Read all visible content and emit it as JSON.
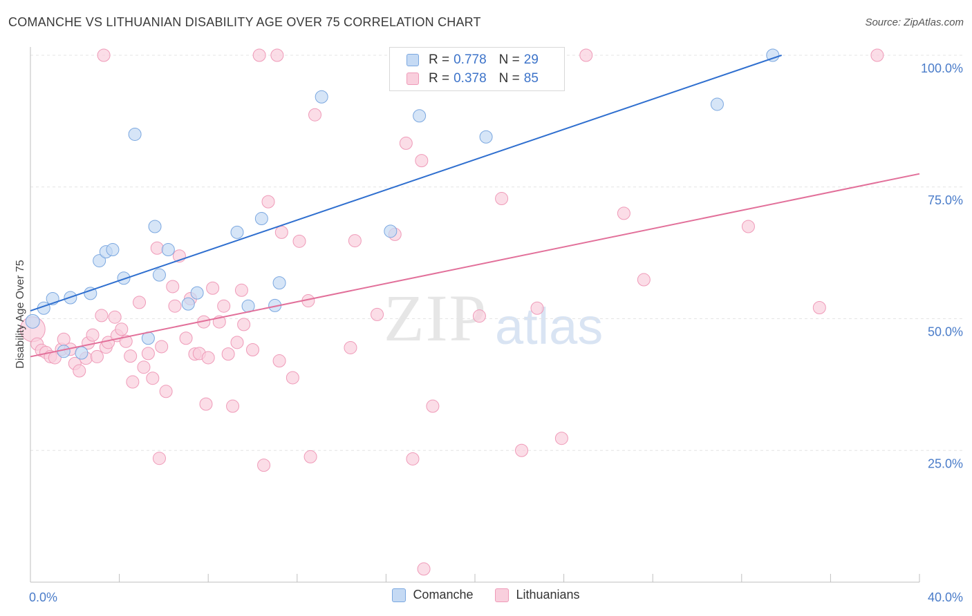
{
  "title": "COMANCHE VS LITHUANIAN DISABILITY AGE OVER 75 CORRELATION CHART",
  "source": "Source: ZipAtlas.com",
  "watermark": {
    "zip": "ZIP",
    "atlas": "atlas"
  },
  "legend": {
    "rows": [
      {
        "r_label": "R = ",
        "r_value": "0.778",
        "n_label": "N = ",
        "n_value": "29"
      },
      {
        "r_label": "R = ",
        "r_value": "0.378",
        "n_label": "N = ",
        "n_value": "85"
      }
    ]
  },
  "chart_data": {
    "type": "scatter",
    "xlabel": "",
    "ylabel": "Disability Age Over 75",
    "xlim": [
      0,
      40
    ],
    "ylim": [
      0,
      100
    ],
    "x_tick_labels": [
      {
        "value": 0,
        "label": "0.0%"
      },
      {
        "value": 40,
        "label": "40.0%"
      }
    ],
    "y_tick_labels": [
      {
        "value": 25,
        "label": "25.0%"
      },
      {
        "value": 50,
        "label": "50.0%"
      },
      {
        "value": 75,
        "label": "75.0%"
      },
      {
        "value": 100,
        "label": "100.0%"
      }
    ],
    "grid": true,
    "legend_position": "top-center",
    "series": [
      {
        "name": "Comanche",
        "color": "#7aa7e0",
        "fill": "#c5daf4",
        "trend_color": "#2f6fcf",
        "trend": {
          "x": [
            0,
            33.8
          ],
          "y": [
            51.5,
            100
          ]
        },
        "points": [
          [
            0.1,
            49.5
          ],
          [
            0.6,
            52.0
          ],
          [
            1.0,
            53.8
          ],
          [
            1.8,
            54.0
          ],
          [
            2.7,
            54.8
          ],
          [
            3.1,
            61.0
          ],
          [
            3.4,
            62.7
          ],
          [
            3.7,
            63.1
          ],
          [
            4.2,
            57.7
          ],
          [
            4.7,
            85.0
          ],
          [
            5.3,
            46.3
          ],
          [
            5.6,
            67.5
          ],
          [
            5.8,
            58.3
          ],
          [
            6.2,
            63.1
          ],
          [
            7.1,
            52.8
          ],
          [
            7.5,
            54.9
          ],
          [
            9.3,
            66.4
          ],
          [
            9.8,
            52.4
          ],
          [
            10.4,
            69.0
          ],
          [
            11.0,
            52.5
          ],
          [
            11.2,
            56.8
          ],
          [
            13.1,
            92.1
          ],
          [
            16.2,
            66.6
          ],
          [
            17.5,
            88.5
          ],
          [
            20.5,
            84.5
          ],
          [
            30.9,
            90.7
          ],
          [
            33.4,
            100.0
          ],
          [
            1.5,
            43.8
          ],
          [
            2.3,
            43.5
          ]
        ]
      },
      {
        "name": "Lithuanians",
        "color": "#ef9ab8",
        "fill": "#f9cfdd",
        "trend_color": "#e2709a",
        "trend": {
          "x": [
            0,
            40
          ],
          "y": [
            42.8,
            77.5
          ]
        },
        "points": [
          [
            0.1,
            48.0
          ],
          [
            0.3,
            45.2
          ],
          [
            0.5,
            44.0
          ],
          [
            0.7,
            43.6
          ],
          [
            0.9,
            42.8
          ],
          [
            1.1,
            42.6
          ],
          [
            1.4,
            44.2
          ],
          [
            1.5,
            46.1
          ],
          [
            1.8,
            44.2
          ],
          [
            2.0,
            41.5
          ],
          [
            2.2,
            40.1
          ],
          [
            2.5,
            42.5
          ],
          [
            2.6,
            45.4
          ],
          [
            2.8,
            46.9
          ],
          [
            3.0,
            42.8
          ],
          [
            3.2,
            50.6
          ],
          [
            3.4,
            44.6
          ],
          [
            3.5,
            45.5
          ],
          [
            3.8,
            50.3
          ],
          [
            3.9,
            46.8
          ],
          [
            4.1,
            48.0
          ],
          [
            4.3,
            45.7
          ],
          [
            4.5,
            42.9
          ],
          [
            4.6,
            38.0
          ],
          [
            4.9,
            53.1
          ],
          [
            5.1,
            40.8
          ],
          [
            5.3,
            43.4
          ],
          [
            5.5,
            38.7
          ],
          [
            5.7,
            63.4
          ],
          [
            5.8,
            23.5
          ],
          [
            5.9,
            44.7
          ],
          [
            6.1,
            36.2
          ],
          [
            6.4,
            56.1
          ],
          [
            6.5,
            52.4
          ],
          [
            6.7,
            61.9
          ],
          [
            7.0,
            46.3
          ],
          [
            7.2,
            53.8
          ],
          [
            7.4,
            43.3
          ],
          [
            7.6,
            43.4
          ],
          [
            7.8,
            49.4
          ],
          [
            7.9,
            33.8
          ],
          [
            8.0,
            42.6
          ],
          [
            8.2,
            55.8
          ],
          [
            8.5,
            49.4
          ],
          [
            8.7,
            52.4
          ],
          [
            8.9,
            43.3
          ],
          [
            9.1,
            33.4
          ],
          [
            9.3,
            45.5
          ],
          [
            9.5,
            55.4
          ],
          [
            9.6,
            48.9
          ],
          [
            10.0,
            44.1
          ],
          [
            10.3,
            100.0
          ],
          [
            10.5,
            22.2
          ],
          [
            10.7,
            72.2
          ],
          [
            11.1,
            100.0
          ],
          [
            11.2,
            42.0
          ],
          [
            11.3,
            66.4
          ],
          [
            11.8,
            38.8
          ],
          [
            12.1,
            64.7
          ],
          [
            12.5,
            53.4
          ],
          [
            12.6,
            23.8
          ],
          [
            12.8,
            88.7
          ],
          [
            14.4,
            44.5
          ],
          [
            14.6,
            64.8
          ],
          [
            15.6,
            50.8
          ],
          [
            16.4,
            66.0
          ],
          [
            16.9,
            83.3
          ],
          [
            17.2,
            23.4
          ],
          [
            17.6,
            80.0
          ],
          [
            17.7,
            2.5
          ],
          [
            18.1,
            33.4
          ],
          [
            20.2,
            50.5
          ],
          [
            21.0,
            100.0
          ],
          [
            21.2,
            72.8
          ],
          [
            22.1,
            25.0
          ],
          [
            22.8,
            52.0
          ],
          [
            23.9,
            27.3
          ],
          [
            25.0,
            100.0
          ],
          [
            26.7,
            70.0
          ],
          [
            27.6,
            57.4
          ],
          [
            32.3,
            67.5
          ],
          [
            35.5,
            52.1
          ],
          [
            38.1,
            100.0
          ],
          [
            3.3,
            100.0
          ],
          [
            21.5,
            100.0
          ]
        ]
      }
    ]
  }
}
